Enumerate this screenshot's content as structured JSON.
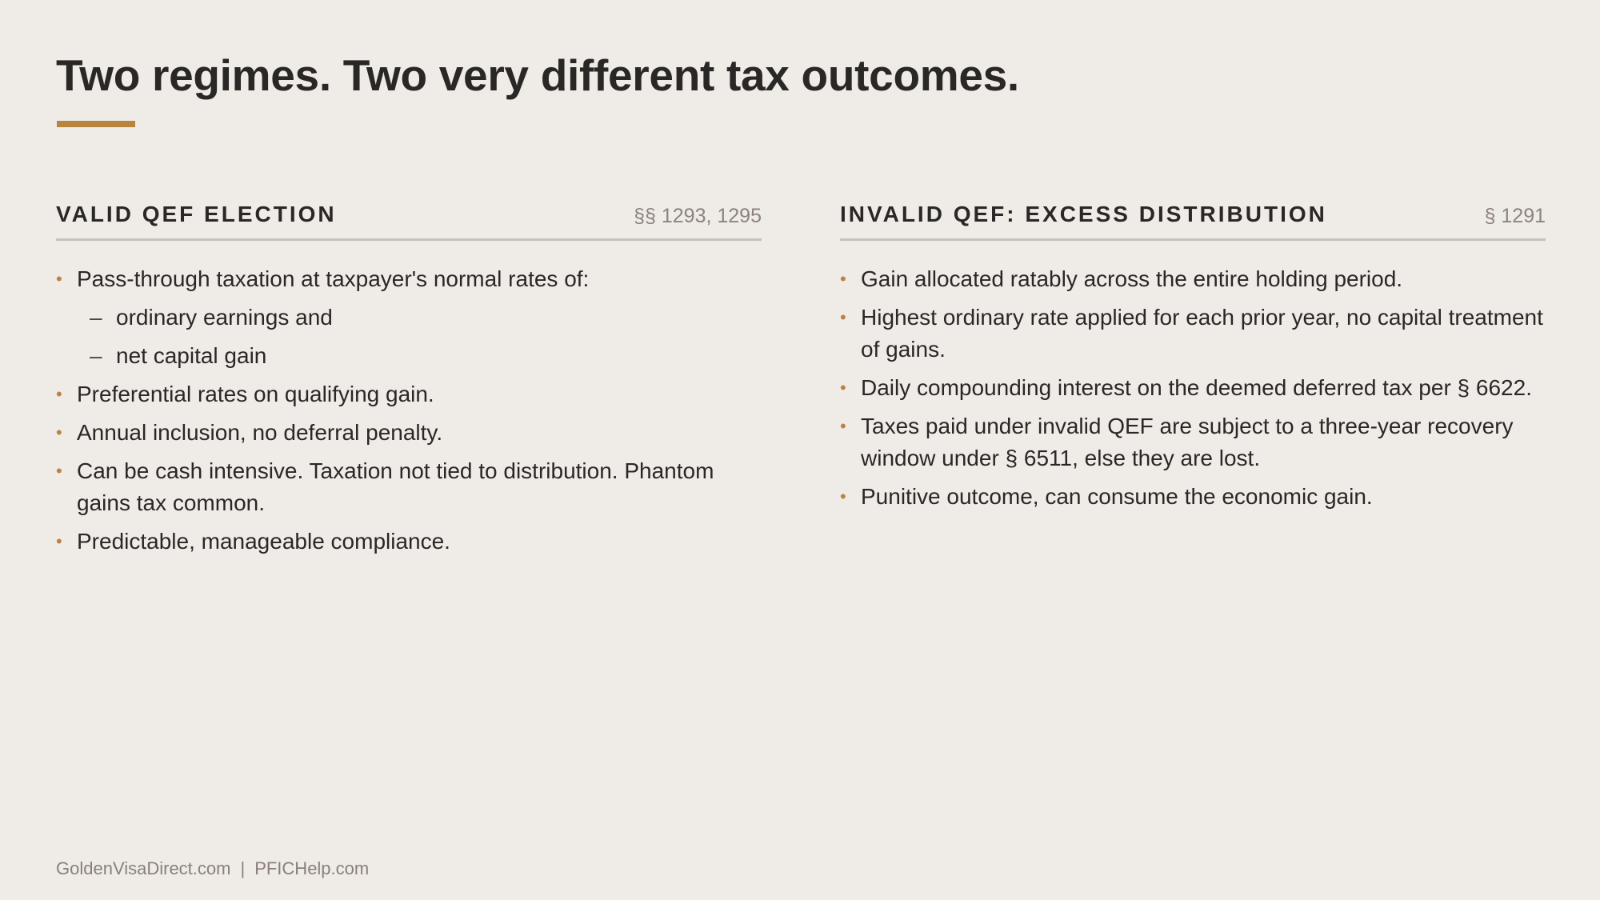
{
  "slide": {
    "title": "Two regimes. Two very different tax outcomes."
  },
  "columns": [
    {
      "heading": "VALID QEF ELECTION",
      "reference": "§§ 1293, 1295",
      "items": [
        {
          "text": "Pass-through taxation at taxpayer's normal rates of:",
          "level": 1
        },
        {
          "text": "ordinary earnings and",
          "level": 2
        },
        {
          "text": "net capital gain",
          "level": 2
        },
        {
          "text": "Preferential rates on qualifying gain.",
          "level": 1
        },
        {
          "text": "Annual inclusion, no deferral penalty.",
          "level": 1
        },
        {
          "text": "Can be cash intensive. Taxation not tied to distribution. Phantom gains tax common.",
          "level": 1
        },
        {
          "text": "Predictable, manageable compliance.",
          "level": 1
        }
      ]
    },
    {
      "heading": "INVALID QEF: EXCESS DISTRIBUTION",
      "reference": "§ 1291",
      "items": [
        {
          "text": "Gain allocated ratably across the entire holding period.",
          "level": 1
        },
        {
          "text": "Highest ordinary rate applied for each prior year, no capital treatment of gains.",
          "level": 1
        },
        {
          "text": "Daily compounding interest on the deemed deferred tax per § 6622.",
          "level": 1
        },
        {
          "text": "Taxes paid under invalid QEF are subject to a three-year recovery window under § 6511, else they are lost.",
          "level": 1
        },
        {
          "text": "Punitive outcome, can consume the economic gain.",
          "level": 1
        }
      ]
    }
  ],
  "footer": {
    "site_one": "GoldenVisaDirect.com",
    "separator": "|",
    "site_two": "PFICHelp.com"
  },
  "markers": {
    "bullet": "•",
    "sub_bullet": "–"
  },
  "colors": {
    "background": "#efebe6",
    "accent": "#b8843e",
    "text": "#2a2727",
    "muted": "#8c837b"
  }
}
